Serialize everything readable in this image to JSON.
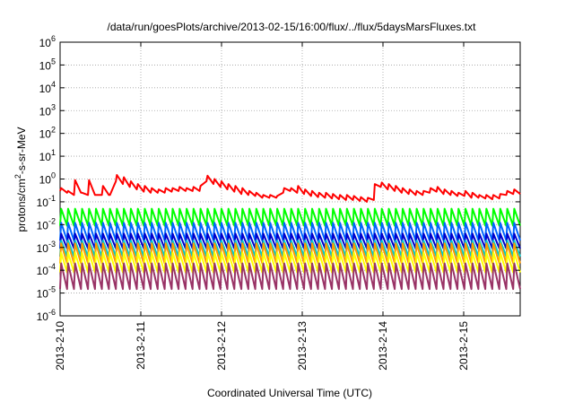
{
  "chart_data": {
    "type": "line",
    "title": "/data/run/goesPlots/archive/2013-02-15/16:00/flux/../flux/5daysMarsFluxes.txt",
    "xlabel": "Coordinated Universal Time (UTC)",
    "ylabel_parts": [
      "protons/cm",
      "2",
      "-s-sr-MeV"
    ],
    "y_scale": "log",
    "ylim_exp": [
      -6,
      6
    ],
    "y_ticks": [
      {
        "base": "10",
        "exp": "-6",
        "value_exp": -6
      },
      {
        "base": "10",
        "exp": "-5",
        "value_exp": -5
      },
      {
        "base": "10",
        "exp": "-4",
        "value_exp": -4
      },
      {
        "base": "10",
        "exp": "-3",
        "value_exp": -3
      },
      {
        "base": "10",
        "exp": "-2",
        "value_exp": -2
      },
      {
        "base": "10",
        "exp": "-1",
        "value_exp": -1
      },
      {
        "base": "10",
        "exp": "0",
        "value_exp": 0
      },
      {
        "base": "10",
        "exp": "1",
        "value_exp": 1
      },
      {
        "base": "10",
        "exp": "2",
        "value_exp": 2
      },
      {
        "base": "10",
        "exp": "3",
        "value_exp": 3
      },
      {
        "base": "10",
        "exp": "4",
        "value_exp": 4
      },
      {
        "base": "10",
        "exp": "5",
        "value_exp": 5
      },
      {
        "base": "10",
        "exp": "6",
        "value_exp": 6
      }
    ],
    "x_ticks": [
      "2013-2-10",
      "2013-2-11",
      "2013-2-12",
      "2013-2-13",
      "2013-2-14",
      "2013-2-15"
    ],
    "xlim_days": [
      0,
      5.7
    ],
    "grid": true,
    "series": [
      {
        "color": "#ff0000",
        "top": [
          0.4,
          0.3,
          0.9,
          0.25,
          0.9,
          0.2,
          0.5,
          0.2,
          1.5,
          1.2,
          0.8,
          0.6,
          0.5,
          0.4,
          0.35,
          0.4,
          0.4,
          0.45,
          0.4,
          0.45,
          0.5,
          1.4,
          1.0,
          0.8,
          0.6,
          0.5,
          0.4,
          0.3,
          0.25,
          0.2,
          0.2,
          0.18,
          0.4,
          0.4,
          0.5,
          0.35,
          0.3,
          0.25,
          0.25,
          0.22,
          0.2,
          0.2,
          0.18,
          0.16,
          0.15,
          0.6,
          0.7,
          0.6,
          0.5,
          0.4,
          0.35,
          0.3,
          0.3,
          0.4,
          0.45,
          0.35,
          0.3,
          0.25,
          0.3,
          0.25,
          0.2,
          0.2,
          0.2,
          0.22,
          0.3,
          0.35
        ],
        "bottom": [
          0.3,
          0.25,
          0.2,
          0.25,
          0.2,
          0.2,
          0.2,
          0.2,
          0.8,
          0.6,
          0.45,
          0.35,
          0.28,
          0.25,
          0.25,
          0.25,
          0.28,
          0.3,
          0.3,
          0.3,
          0.3,
          0.8,
          0.6,
          0.45,
          0.35,
          0.28,
          0.22,
          0.2,
          0.18,
          0.15,
          0.15,
          0.15,
          0.25,
          0.3,
          0.25,
          0.22,
          0.18,
          0.16,
          0.15,
          0.14,
          0.13,
          0.12,
          0.12,
          0.11,
          0.1,
          0.12,
          0.45,
          0.35,
          0.3,
          0.25,
          0.22,
          0.2,
          0.2,
          0.25,
          0.28,
          0.22,
          0.2,
          0.18,
          0.18,
          0.15,
          0.15,
          0.14,
          0.13,
          0.14,
          0.2,
          0.22
        ]
      },
      {
        "color": "#00ff00",
        "top": [
          0.05
        ],
        "bottom": [
          0.009
        ]
      },
      {
        "color": "#0066ff",
        "top": [
          0.012
        ],
        "bottom": [
          0.002
        ]
      },
      {
        "color": "#0000cc",
        "top": [
          0.004
        ],
        "bottom": [
          0.0009
        ]
      },
      {
        "color": "#00cccc",
        "top": [
          0.002
        ],
        "bottom": [
          0.0004
        ]
      },
      {
        "color": "#ff9900",
        "top": [
          0.0015
        ],
        "bottom": [
          0.0002
        ]
      },
      {
        "color": "#ffff00",
        "top": [
          0.0006
        ],
        "bottom": [
          8e-05
        ]
      },
      {
        "color": "#993366",
        "top": [
          0.0002
        ],
        "bottom": [
          1.5e-05
        ]
      }
    ]
  }
}
